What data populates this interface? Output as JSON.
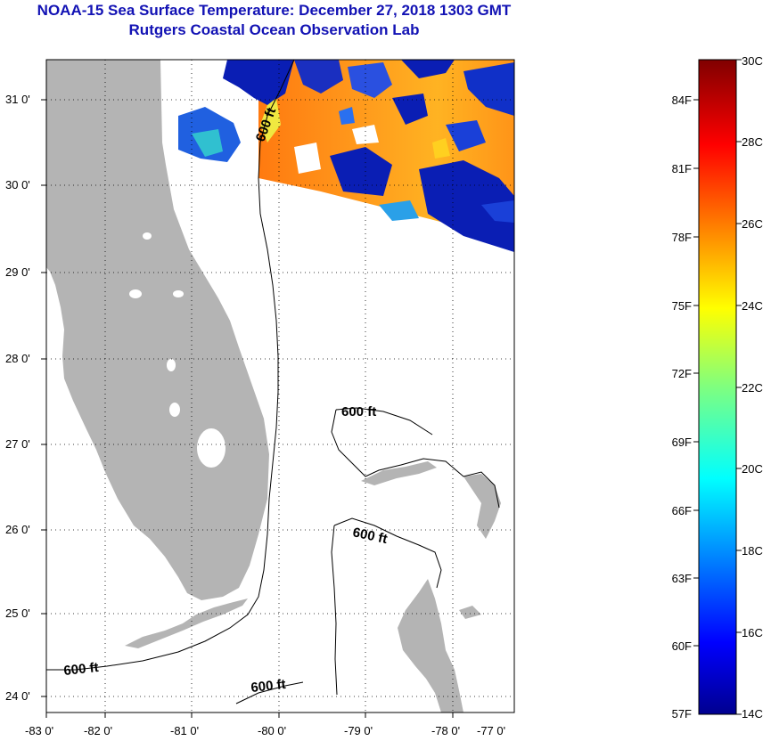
{
  "title": {
    "line1": "NOAA-15 Sea Surface Temperature:  December 27, 2018 1303 GMT",
    "line2": "Rutgers Coastal Ocean Observation Lab"
  },
  "map": {
    "lon_labels": [
      "-83 0'",
      "-82 0'",
      "-81 0'",
      "-80 0'",
      "-79 0'",
      "-78 0'",
      "-77 0'"
    ],
    "lat_labels": [
      "31 0'",
      "30 0'",
      "29 0'",
      "28 0'",
      "27 0'",
      "26 0'",
      "25 0'",
      "24 0'"
    ],
    "isobath_labels": [
      "600 ft",
      "600 ft",
      "600 ft",
      "600 ft",
      "600 ft"
    ],
    "colors": {
      "land": "#b4b4b4",
      "frame": "#000000"
    }
  },
  "colorbar": {
    "celsius_labels": [
      "30C",
      "28C",
      "26C",
      "24C",
      "22C",
      "20C",
      "18C",
      "16C",
      "14C"
    ],
    "fahrenheit_labels": [
      "84F",
      "81F",
      "78F",
      "75F",
      "72F",
      "69F",
      "66F",
      "63F",
      "60F",
      "57F"
    ]
  }
}
